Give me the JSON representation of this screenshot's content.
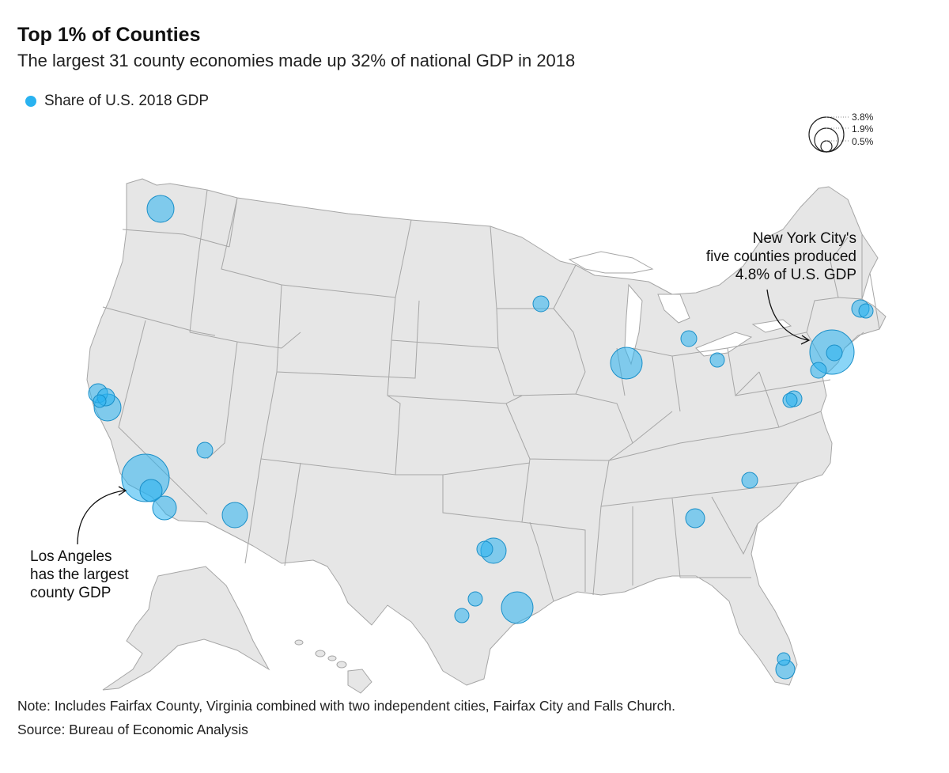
{
  "title": "Top 1% of Counties",
  "subtitle": "The largest 31 county economies made up 32% of national GDP in 2018",
  "legend": {
    "label": "Share of U.S. 2018 GDP",
    "color": "#29b2f0"
  },
  "size_legend": {
    "large": "3.8%",
    "medium": "1.9%",
    "small": "0.5%"
  },
  "annotations": {
    "ny_line1": "New York City's",
    "ny_line2": "five counties produced",
    "ny_line3": "4.8% of U.S. GDP",
    "la_line1": "Los Angeles",
    "la_line2": "has the largest",
    "la_line3": "county GDP"
  },
  "note": "Note: Includes Fairfax County, Virginia combined with two independent cities, Fairfax City and Falls Church.",
  "source": "Source: Bureau of Economic Analysis",
  "colors": {
    "land": "#e6e6e6",
    "border": "#a6a6a6",
    "bubble": "#29b2f0"
  }
}
